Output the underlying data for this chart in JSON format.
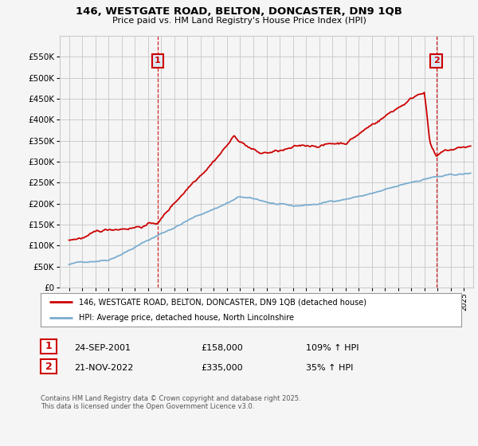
{
  "title": "146, WESTGATE ROAD, BELTON, DONCASTER, DN9 1QB",
  "subtitle": "Price paid vs. HM Land Registry's House Price Index (HPI)",
  "legend_label_red": "146, WESTGATE ROAD, BELTON, DONCASTER, DN9 1QB (detached house)",
  "legend_label_blue": "HPI: Average price, detached house, North Lincolnshire",
  "sale1_date": "24-SEP-2001",
  "sale1_price": "£158,000",
  "sale1_hpi": "109% ↑ HPI",
  "sale2_date": "21-NOV-2022",
  "sale2_price": "£335,000",
  "sale2_hpi": "35% ↑ HPI",
  "footer": "Contains HM Land Registry data © Crown copyright and database right 2025.\nThis data is licensed under the Open Government Licence v3.0.",
  "ylim": [
    0,
    600000
  ],
  "yticks": [
    0,
    50000,
    100000,
    150000,
    200000,
    250000,
    300000,
    350000,
    400000,
    450000,
    500000,
    550000
  ],
  "red_color": "#cc0000",
  "blue_color": "#7aadcf",
  "vline_color": "#cc0000",
  "grid_color": "#cccccc",
  "bg_color": "#f5f5f5",
  "sale1_x": 2001.73,
  "sale2_x": 2022.89,
  "marker1_y": 540000,
  "marker2_y": 540000,
  "xlim_left": 1994.3,
  "xlim_right": 2025.7
}
